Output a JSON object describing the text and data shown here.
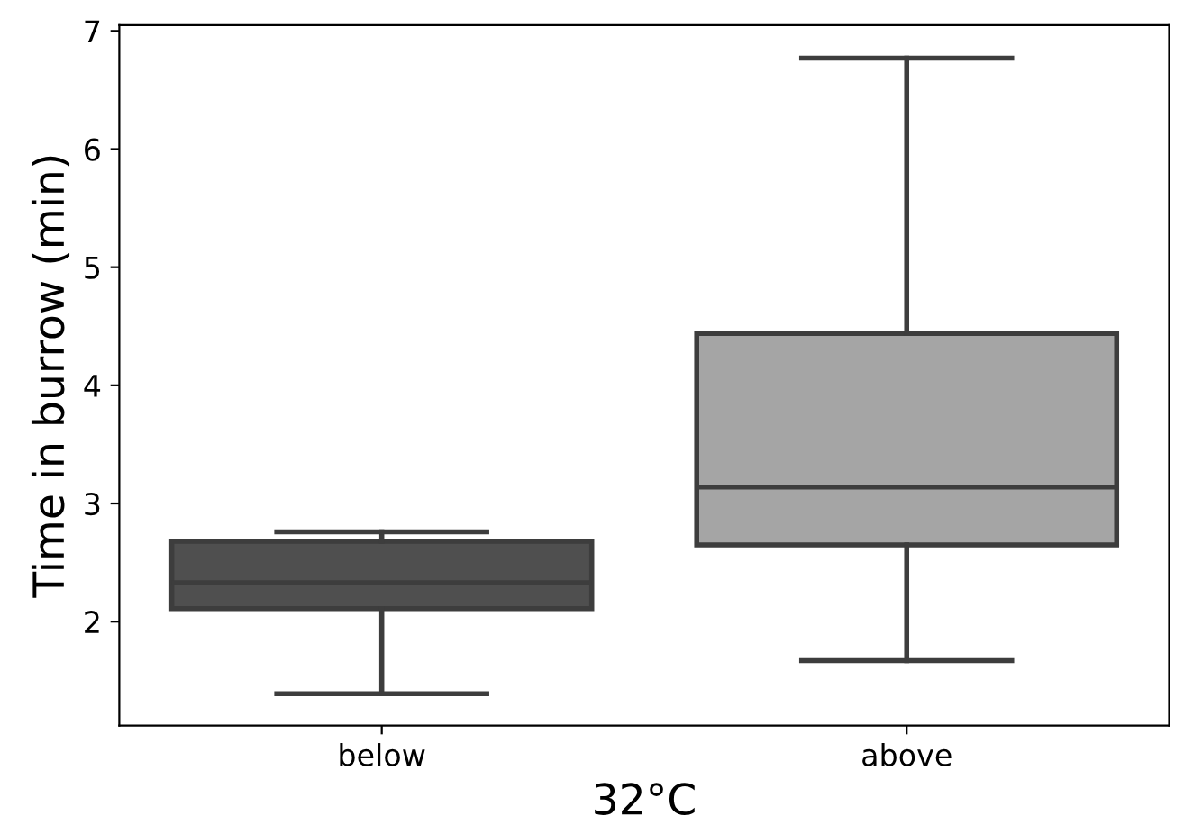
{
  "chart_data": {
    "type": "box",
    "xlabel": "32°C",
    "ylabel": "Time in burrow (min)",
    "categories": [
      "below",
      "above"
    ],
    "boxes": [
      {
        "low": 1.39,
        "q1": 2.11,
        "median": 2.33,
        "q3": 2.68,
        "high": 2.76
      },
      {
        "low": 1.67,
        "q1": 2.65,
        "median": 3.14,
        "q3": 4.44,
        "high": 6.77
      }
    ],
    "colors": [
      "#4f4f4f",
      "#a5a5a5"
    ],
    "ylim": [
      1.12,
      7.05
    ],
    "yticks": [
      2,
      3,
      4,
      5,
      6,
      7
    ],
    "grid": false,
    "legend": false
  }
}
